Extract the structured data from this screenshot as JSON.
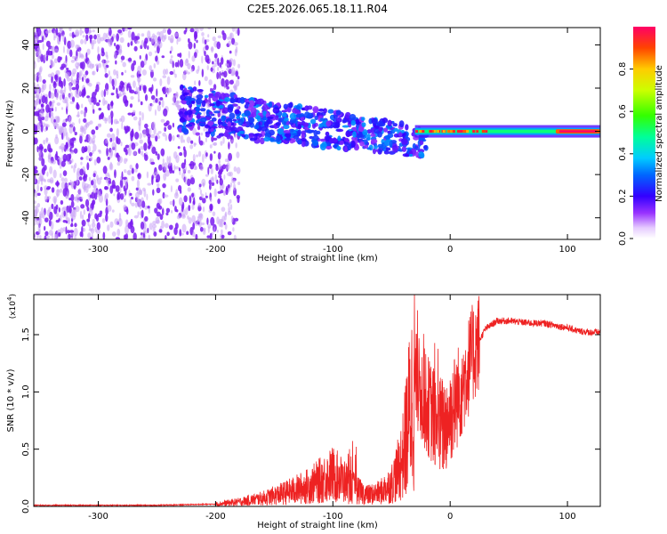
{
  "title": "C2E5.2026.065.18.11.R04",
  "chart_data": [
    {
      "type": "heatmap",
      "xlabel": "Height of straight line (km)",
      "ylabel": "Frequency (Hz)",
      "xlim": [
        -355,
        128
      ],
      "ylim": [
        -50,
        48
      ],
      "xticks": [
        -300,
        -200,
        -100,
        0,
        100
      ],
      "xtick_labels": [
        "-300",
        "-200",
        "-100",
        "0",
        "100"
      ],
      "yticks": [
        -40,
        -20,
        0,
        20,
        40
      ],
      "ytick_labels": [
        "-40",
        "-20",
        "0",
        "20",
        "40"
      ],
      "colorbar": {
        "label": "Normalized spectral amplitude",
        "range": [
          0,
          1
        ],
        "ticks": [
          0,
          0.2,
          0.4,
          0.6,
          0.8
        ],
        "tick_labels": [
          "0.0",
          "0.2",
          "0.4",
          "0.6",
          "0.8"
        ],
        "colormap": [
          "#ffffff",
          "#cc99ff",
          "#7b00ff",
          "#0000ff",
          "#00ccff",
          "#00ff66",
          "#66ff00",
          "#ffff00",
          "#ff8000",
          "#ff0000"
        ]
      },
      "features": [
        {
          "name": "noise-region",
          "x_range": [
            -355,
            -180
          ],
          "freq_range": [
            -50,
            48
          ],
          "amplitude": 0.15
        },
        {
          "name": "scattered-band",
          "x_range": [
            -230,
            -20
          ],
          "freq_center": [
            10,
            -5
          ],
          "amplitude": 0.3
        },
        {
          "name": "tone-band",
          "x_range": [
            -30,
            128
          ],
          "freq_center": 0,
          "amplitude": 0.5
        },
        {
          "name": "peak-band",
          "x_range": [
            90,
            128
          ],
          "freq_center": 0,
          "amplitude": 1.0
        }
      ]
    },
    {
      "type": "line",
      "xlabel": "Height of straight line (km)",
      "ylabel": "SNR (10 * v/v)",
      "scale_label": "(x10",
      "scale_exp": "4",
      "scale_close": ")",
      "xlim": [
        -355,
        128
      ],
      "ylim": [
        0,
        1.85
      ],
      "xticks": [
        -300,
        -200,
        -100,
        0,
        100
      ],
      "xtick_labels": [
        "-300",
        "-200",
        "-100",
        "0",
        "100"
      ],
      "yticks": [
        0,
        0.5,
        1.0,
        1.5
      ],
      "ytick_labels": [
        "0.0",
        "0.5",
        "1.0",
        "1.5"
      ],
      "series": [
        {
          "name": "SNR",
          "color": "#ee2222",
          "x": [
            -355,
            -300,
            -250,
            -200,
            -180,
            -160,
            -140,
            -120,
            -100,
            -90,
            -80,
            -70,
            -60,
            -50,
            -45,
            -40,
            -35,
            -30,
            -25,
            -20,
            -15,
            -10,
            -5,
            0,
            10,
            20,
            30,
            40,
            50,
            60,
            70,
            80,
            90,
            100,
            110,
            120,
            128
          ],
          "values": [
            0.01,
            0.01,
            0.01,
            0.02,
            0.04,
            0.07,
            0.12,
            0.18,
            0.28,
            0.22,
            0.14,
            0.1,
            0.12,
            0.2,
            0.3,
            0.45,
            0.8,
            1.1,
            1.0,
            0.9,
            0.8,
            0.7,
            0.7,
            0.8,
            1.05,
            1.35,
            1.55,
            1.62,
            1.62,
            1.61,
            1.6,
            1.6,
            1.58,
            1.56,
            1.53,
            1.52,
            1.52
          ]
        }
      ]
    }
  ]
}
